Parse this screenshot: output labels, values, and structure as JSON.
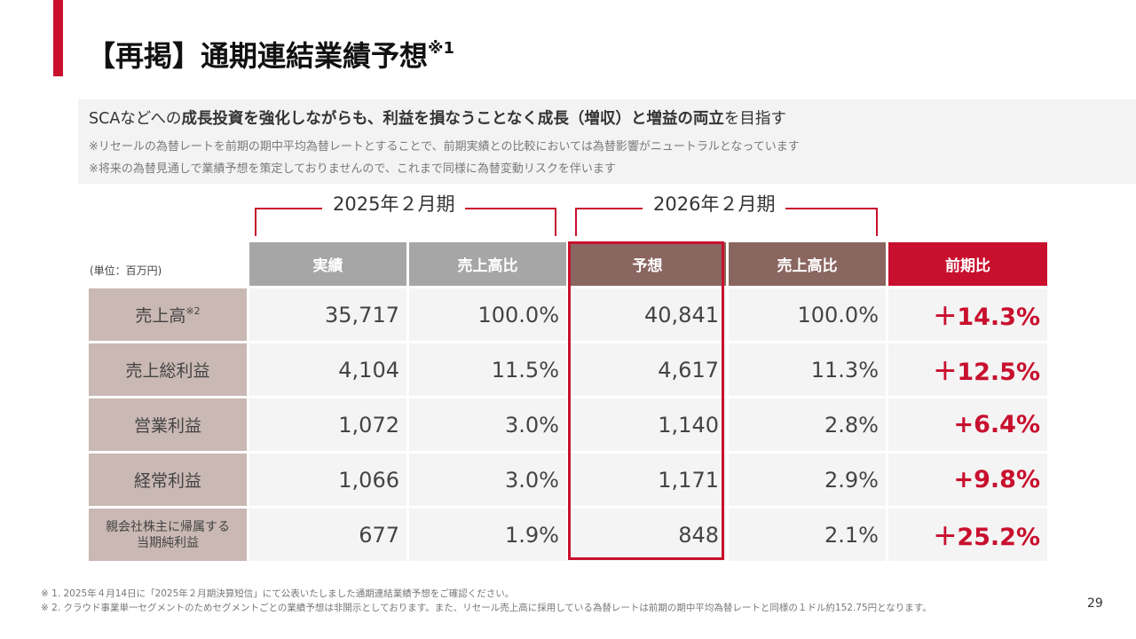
{
  "title": {
    "main": "【再掲】通期連結業績予想",
    "mark": "※1"
  },
  "summary": {
    "prefix": "SCAなどへの",
    "bold1": "成長投資を強化しながらも、利益を損なうことなく成長（増収）と増益の両立",
    "suffix": "を目指す",
    "note1": "※リセールの為替レートを前期の期中平均為替レートとすることで、前期実績との比較においては為替影響がニュートラルとなっています",
    "note2": "※将来の為替見通しで業績予想を策定しておりませんので、これまで同様に為替変動リスクを伴います"
  },
  "periods": {
    "fy2025": "2025年２月期",
    "fy2026": "2026年２月期"
  },
  "unit": "(単位：百万円)",
  "headers": [
    "実績",
    "売上高比",
    "予想",
    "売上高比",
    "前期比"
  ],
  "rows": [
    {
      "label": "売上高",
      "mark": "※2",
      "actual": "35,717",
      "actual_ratio": "100.0%",
      "forecast": "40,841",
      "forecast_ratio": "100.0%",
      "yoy": "＋14.3%"
    },
    {
      "label": "売上総利益",
      "actual": "4,104",
      "actual_ratio": "11.5%",
      "forecast": "4,617",
      "forecast_ratio": "11.3%",
      "yoy": "＋12.5%"
    },
    {
      "label": "営業利益",
      "actual": "1,072",
      "actual_ratio": "3.0%",
      "forecast": "1,140",
      "forecast_ratio": "2.8%",
      "yoy": "+6.4%"
    },
    {
      "label": "経常利益",
      "actual": "1,066",
      "actual_ratio": "3.0%",
      "forecast": "1,171",
      "forecast_ratio": "2.9%",
      "yoy": "+9.8%"
    },
    {
      "label_line1": "親会社株主に帰属する",
      "label_line2": "当期純利益",
      "actual": "677",
      "actual_ratio": "1.9%",
      "forecast": "848",
      "forecast_ratio": "2.1%",
      "yoy": "＋25.2%"
    }
  ],
  "footnotes": [
    "※ 1. 2025年４月14日に「2025年２月期決算短信」にて公表いたしました通期連結業績予想をご確認ください。",
    "※ 2. クラウド事業単一セグメントのためセグメントごとの業績予想は非開示としております。また、リセール売上高に採用している為替レートは前期の期中平均為替レートと同様の１ドル約152.75円となります。"
  ],
  "page_number": "29",
  "colors": {
    "accent": "#c8102e",
    "forecast_header": "#8a6660",
    "actual_header": "#a6a6a6",
    "label_bg": "#c9b8b3"
  }
}
